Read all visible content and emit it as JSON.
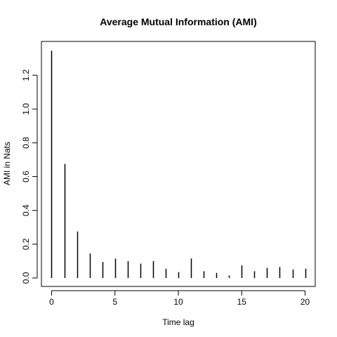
{
  "chart_data": {
    "type": "bar",
    "title": "Average Mutual Information (AMI)",
    "xlabel": "Time lag",
    "ylabel": "AMI in Nats",
    "x": [
      0,
      1,
      2,
      3,
      4,
      5,
      6,
      7,
      8,
      9,
      10,
      11,
      12,
      13,
      14,
      15,
      16,
      17,
      18,
      19,
      20
    ],
    "values": [
      1.345,
      0.675,
      0.275,
      0.145,
      0.095,
      0.115,
      0.1,
      0.085,
      0.1,
      0.055,
      0.035,
      0.115,
      0.04,
      0.03,
      0.015,
      0.075,
      0.04,
      0.06,
      0.065,
      0.05,
      0.055
    ],
    "xlim": [
      -0.8,
      20.8
    ],
    "ylim": [
      -0.05,
      1.4
    ],
    "xticks": [
      0,
      5,
      10,
      15,
      20
    ],
    "xtick_labels": [
      "0",
      "5",
      "10",
      "15",
      "20"
    ],
    "yticks": [
      0,
      0.2,
      0.4,
      0.6,
      0.8,
      1.0,
      1.2
    ],
    "ytick_labels": [
      "0.0",
      "0.2",
      "0.4",
      "0.6",
      "0.8",
      "1.0",
      "1.2"
    ],
    "grid": false,
    "legend": "none",
    "bar_color": "#000000"
  }
}
